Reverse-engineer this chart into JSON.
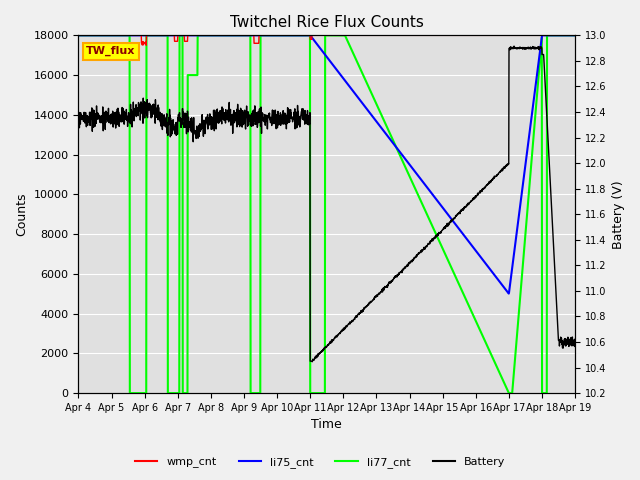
{
  "title": "Twitchel Rice Flux Counts",
  "xlabel": "Time",
  "ylabel_left": "Counts",
  "ylabel_right": "Battery (V)",
  "ylim_left": [
    0,
    18000
  ],
  "ylim_right": [
    10.2,
    13.0
  ],
  "total_days": 15.0,
  "xtick_labels": [
    "Apr 4",
    "Apr 5",
    "Apr 6",
    "Apr 7",
    "Apr 8",
    "Apr 9",
    "Apr 10",
    "Apr 11",
    "Apr 12",
    "Apr 13",
    "Apr 14",
    "Apr 15",
    "Apr 16",
    "Apr 17",
    "Apr 18",
    "Apr 19"
  ],
  "annotation_box": "TW_flux",
  "bg_color": "#e0e0e0",
  "grid_color": "#ffffff",
  "fig_facecolor": "#f0f0f0"
}
